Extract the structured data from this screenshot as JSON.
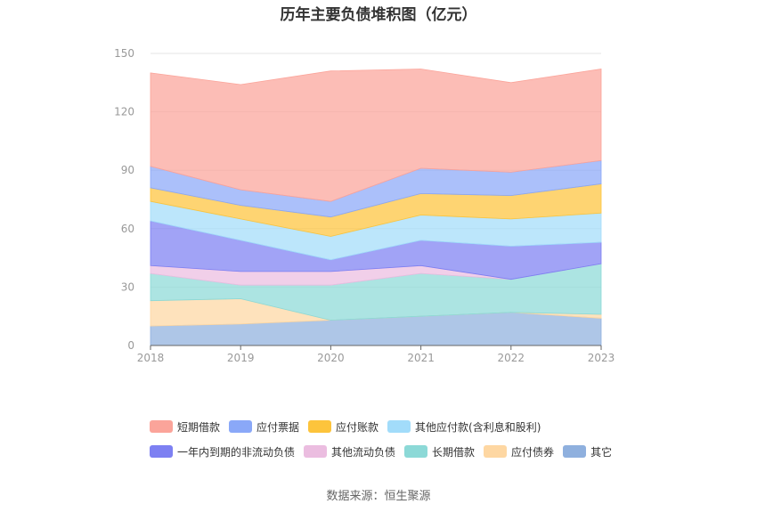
{
  "title": "历年主要负债堆积图（亿元）",
  "source": "数据来源：恒生聚源",
  "colors": {
    "短期借款": "#fba49a",
    "应付票据": "#8aa8f8",
    "应付账款": "#fdc43c",
    "其他应付款(含利息和股利)": "#a2dcfa",
    "一年内到期的非流动负债": "#7d80f2",
    "其他流动负债": "#ebbde0",
    "长期借款": "#8cd9d7",
    "应付债券": "#fed7a2",
    "其它": "#8fb0de"
  },
  "chart_data": {
    "type": "area",
    "stacked": true,
    "categories": [
      "2018",
      "2019",
      "2020",
      "2021",
      "2022",
      "2023"
    ],
    "ylim": [
      0,
      150
    ],
    "yticks": [
      0,
      30,
      60,
      90,
      120,
      150
    ],
    "grid": true,
    "legend_position": "bottom",
    "series": [
      {
        "name": "其它",
        "values": [
          10,
          11,
          13,
          15,
          17,
          14
        ]
      },
      {
        "name": "应付债券",
        "values": [
          13,
          13,
          0,
          0,
          0,
          2
        ]
      },
      {
        "name": "长期借款",
        "values": [
          14,
          7,
          18,
          22,
          17,
          26
        ]
      },
      {
        "name": "其他流动负债",
        "values": [
          4,
          7,
          7,
          4,
          0,
          0
        ]
      },
      {
        "name": "一年内到期的非流动负债",
        "values": [
          23,
          16,
          6,
          13,
          17,
          11
        ]
      },
      {
        "name": "其他应付款(含利息和股利)",
        "values": [
          10,
          11,
          12,
          13,
          14,
          15
        ]
      },
      {
        "name": "应付账款",
        "values": [
          7,
          7,
          10,
          11,
          12,
          15
        ]
      },
      {
        "name": "应付票据",
        "values": [
          11,
          8,
          8,
          13,
          12,
          12
        ]
      },
      {
        "name": "短期借款",
        "values": [
          48,
          54,
          67,
          51,
          46,
          47
        ]
      }
    ]
  },
  "legend_rows": [
    [
      "短期借款",
      "应付票据",
      "应付账款",
      "其他应付款(含利息和股利)"
    ],
    [
      "一年内到期的非流动负债",
      "其他流动负债",
      "长期借款",
      "应付债券",
      "其它"
    ]
  ]
}
